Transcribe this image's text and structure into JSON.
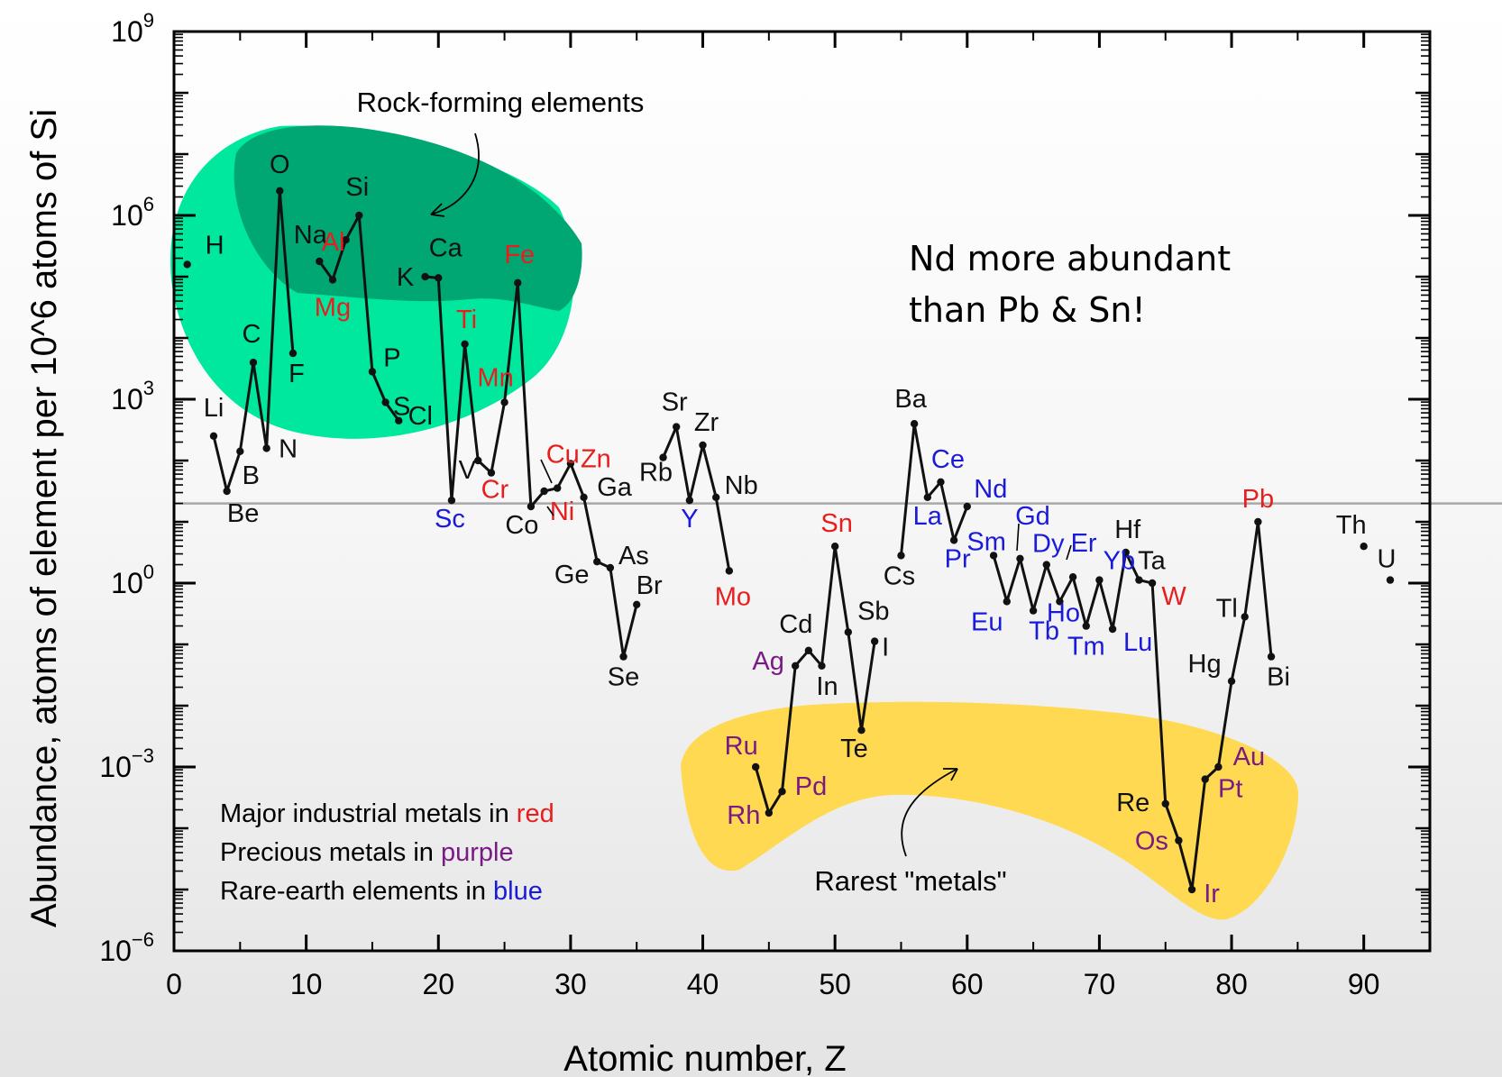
{
  "colors": {
    "red": "#e81e1e",
    "purple": "#7a1a85",
    "blue": "#1a1adb",
    "black": "#111111",
    "rock_region": "#00e89e",
    "rock_core": "#00a773",
    "rare_region": "#ffd951"
  },
  "chart_data": {
    "type": "line",
    "title": "",
    "xlabel": "Atomic number, Z",
    "ylabel": "Abundance, atoms of element per 10^6 atoms of Si",
    "xlim": [
      0,
      95
    ],
    "ylim_log10": [
      -6,
      9
    ],
    "y_scale": "log",
    "grid": false,
    "x_ticks": [
      "0",
      "10",
      "20",
      "30",
      "40",
      "50",
      "60",
      "70",
      "80",
      "90"
    ],
    "y_ticks": [
      {
        "base": "10",
        "exp": "9"
      },
      {
        "base": "10",
        "exp": "6"
      },
      {
        "base": "10",
        "exp": "3"
      },
      {
        "base": "10",
        "exp": "0"
      },
      {
        "base": "10",
        "exp": "−3"
      },
      {
        "base": "10",
        "exp": "−6"
      }
    ],
    "reference_line_log10": 1.3,
    "segments": [
      [
        1
      ],
      [
        3,
        4,
        5,
        6,
        7,
        8,
        9
      ],
      [
        11,
        12,
        13,
        14,
        15,
        16,
        17
      ],
      [
        19,
        20,
        21,
        22,
        23,
        24,
        25,
        26,
        27,
        28,
        29,
        30,
        31,
        32,
        33,
        34,
        35
      ],
      [
        37,
        38,
        39,
        40,
        41,
        42
      ],
      [
        44,
        45,
        46,
        47,
        48,
        49,
        50,
        51,
        52,
        53
      ],
      [
        55,
        56,
        57,
        58,
        59,
        60
      ],
      [
        62,
        63,
        64,
        65,
        66,
        67,
        68,
        69,
        70,
        71,
        72,
        73,
        74,
        75,
        76,
        77,
        78,
        79,
        80,
        81,
        82,
        83
      ],
      [
        90
      ],
      [
        92
      ]
    ],
    "elements": [
      {
        "s": "H",
        "z": 1,
        "v": 5.2,
        "c": "black"
      },
      {
        "s": "Li",
        "z": 3,
        "v": 2.4,
        "c": "black"
      },
      {
        "s": "Be",
        "z": 4,
        "v": 1.5,
        "c": "black"
      },
      {
        "s": "B",
        "z": 5,
        "v": 2.15,
        "c": "black"
      },
      {
        "s": "C",
        "z": 6,
        "v": 3.6,
        "c": "black"
      },
      {
        "s": "N",
        "z": 7,
        "v": 2.2,
        "c": "black"
      },
      {
        "s": "O",
        "z": 8,
        "v": 6.4,
        "c": "black"
      },
      {
        "s": "F",
        "z": 9,
        "v": 3.75,
        "c": "black"
      },
      {
        "s": "Na",
        "z": 11,
        "v": 5.25,
        "c": "black"
      },
      {
        "s": "Mg",
        "z": 12,
        "v": 4.95,
        "c": "red"
      },
      {
        "s": "Al",
        "z": 13,
        "v": 5.6,
        "c": "red"
      },
      {
        "s": "Si",
        "z": 14,
        "v": 6.0,
        "c": "black"
      },
      {
        "s": "P",
        "z": 15,
        "v": 3.45,
        "c": "black"
      },
      {
        "s": "S",
        "z": 16,
        "v": 2.95,
        "c": "black"
      },
      {
        "s": "Cl",
        "z": 17,
        "v": 2.65,
        "c": "black"
      },
      {
        "s": "K",
        "z": 19,
        "v": 5.0,
        "c": "black"
      },
      {
        "s": "Ca",
        "z": 20,
        "v": 4.98,
        "c": "black"
      },
      {
        "s": "Sc",
        "z": 21,
        "v": 1.35,
        "c": "blue"
      },
      {
        "s": "Ti",
        "z": 22,
        "v": 3.9,
        "c": "red"
      },
      {
        "s": "V",
        "z": 23,
        "v": 2.0,
        "c": "black"
      },
      {
        "s": "Cr",
        "z": 24,
        "v": 1.8,
        "c": "red"
      },
      {
        "s": "Mn",
        "z": 25,
        "v": 2.95,
        "c": "red"
      },
      {
        "s": "Fe",
        "z": 26,
        "v": 4.9,
        "c": "red"
      },
      {
        "s": "Co",
        "z": 27,
        "v": 1.25,
        "c": "black"
      },
      {
        "s": "Ni",
        "z": 28,
        "v": 1.5,
        "c": "red"
      },
      {
        "s": "Cu",
        "z": 29,
        "v": 1.55,
        "c": "red"
      },
      {
        "s": "Zn",
        "z": 30,
        "v": 1.95,
        "c": "red"
      },
      {
        "s": "Ga",
        "z": 31,
        "v": 1.4,
        "c": "black"
      },
      {
        "s": "Ge",
        "z": 32,
        "v": 0.35,
        "c": "black"
      },
      {
        "s": "As",
        "z": 33,
        "v": 0.25,
        "c": "black"
      },
      {
        "s": "Se",
        "z": 34,
        "v": -1.2,
        "c": "black"
      },
      {
        "s": "Br",
        "z": 35,
        "v": -0.35,
        "c": "black"
      },
      {
        "s": "Rb",
        "z": 37,
        "v": 2.05,
        "c": "black"
      },
      {
        "s": "Sr",
        "z": 38,
        "v": 2.55,
        "c": "black"
      },
      {
        "s": "Y",
        "z": 39,
        "v": 1.35,
        "c": "blue"
      },
      {
        "s": "Zr",
        "z": 40,
        "v": 2.25,
        "c": "black"
      },
      {
        "s": "Nb",
        "z": 41,
        "v": 1.4,
        "c": "black"
      },
      {
        "s": "Mo",
        "z": 42,
        "v": 0.2,
        "c": "red"
      },
      {
        "s": "Ru",
        "z": 44,
        "v": -3.0,
        "c": "purple"
      },
      {
        "s": "Rh",
        "z": 45,
        "v": -3.75,
        "c": "purple"
      },
      {
        "s": "Pd",
        "z": 46,
        "v": -3.4,
        "c": "purple"
      },
      {
        "s": "Ag",
        "z": 47,
        "v": -1.35,
        "c": "purple"
      },
      {
        "s": "Cd",
        "z": 48,
        "v": -1.1,
        "c": "black"
      },
      {
        "s": "In",
        "z": 49,
        "v": -1.35,
        "c": "black"
      },
      {
        "s": "Sn",
        "z": 50,
        "v": 0.6,
        "c": "red"
      },
      {
        "s": "Sb",
        "z": 51,
        "v": -0.8,
        "c": "black"
      },
      {
        "s": "Te",
        "z": 52,
        "v": -2.4,
        "c": "black"
      },
      {
        "s": "I",
        "z": 53,
        "v": -0.95,
        "c": "black"
      },
      {
        "s": "Cs",
        "z": 55,
        "v": 0.45,
        "c": "black"
      },
      {
        "s": "Ba",
        "z": 56,
        "v": 2.6,
        "c": "black"
      },
      {
        "s": "La",
        "z": 57,
        "v": 1.4,
        "c": "blue"
      },
      {
        "s": "Ce",
        "z": 58,
        "v": 1.65,
        "c": "blue"
      },
      {
        "s": "Pr",
        "z": 59,
        "v": 0.7,
        "c": "blue"
      },
      {
        "s": "Nd",
        "z": 60,
        "v": 1.25,
        "c": "blue"
      },
      {
        "s": "Sm",
        "z": 62,
        "v": 0.45,
        "c": "blue"
      },
      {
        "s": "Eu",
        "z": 63,
        "v": -0.3,
        "c": "blue"
      },
      {
        "s": "Gd",
        "z": 64,
        "v": 0.4,
        "c": "blue"
      },
      {
        "s": "Tb",
        "z": 65,
        "v": -0.45,
        "c": "blue"
      },
      {
        "s": "Dy",
        "z": 66,
        "v": 0.3,
        "c": "blue"
      },
      {
        "s": "Ho",
        "z": 67,
        "v": -0.3,
        "c": "blue"
      },
      {
        "s": "Er",
        "z": 68,
        "v": 0.1,
        "c": "blue"
      },
      {
        "s": "Tm",
        "z": 69,
        "v": -0.7,
        "c": "blue"
      },
      {
        "s": "Yb",
        "z": 70,
        "v": 0.05,
        "c": "blue"
      },
      {
        "s": "Lu",
        "z": 71,
        "v": -0.75,
        "c": "blue"
      },
      {
        "s": "Hf",
        "z": 72,
        "v": 0.5,
        "c": "black"
      },
      {
        "s": "Ta",
        "z": 73,
        "v": 0.05,
        "c": "black"
      },
      {
        "s": "W",
        "z": 74,
        "v": 0.0,
        "c": "red"
      },
      {
        "s": "Re",
        "z": 75,
        "v": -3.6,
        "c": "black"
      },
      {
        "s": "Os",
        "z": 76,
        "v": -4.2,
        "c": "purple"
      },
      {
        "s": "Ir",
        "z": 77,
        "v": -5.0,
        "c": "purple"
      },
      {
        "s": "Pt",
        "z": 78,
        "v": -3.2,
        "c": "purple"
      },
      {
        "s": "Au",
        "z": 79,
        "v": -3.0,
        "c": "purple"
      },
      {
        "s": "Hg",
        "z": 80,
        "v": -1.6,
        "c": "black"
      },
      {
        "s": "Tl",
        "z": 81,
        "v": -0.55,
        "c": "black"
      },
      {
        "s": "Pb",
        "z": 82,
        "v": 1.0,
        "c": "red"
      },
      {
        "s": "Bi",
        "z": 83,
        "v": -1.2,
        "c": "black"
      },
      {
        "s": "Th",
        "z": 90,
        "v": 0.6,
        "c": "black"
      },
      {
        "s": "U",
        "z": 92,
        "v": 0.05,
        "c": "black"
      }
    ],
    "annotations": {
      "rock_forming": "Rock-forming elements",
      "rarest_metals": "Rarest \"metals\"",
      "nd_note_line1": "Nd more abundant",
      "nd_note_line2": "than Pb & Sn!"
    },
    "legend": {
      "placement": "bottom-left",
      "items": [
        {
          "prefix": "Major industrial metals in ",
          "word": "red",
          "color": "red"
        },
        {
          "prefix": "Precious metals in ",
          "word": "purple",
          "color": "purple"
        },
        {
          "prefix": "Rare-earth elements in ",
          "word": "blue",
          "color": "blue"
        }
      ]
    }
  }
}
